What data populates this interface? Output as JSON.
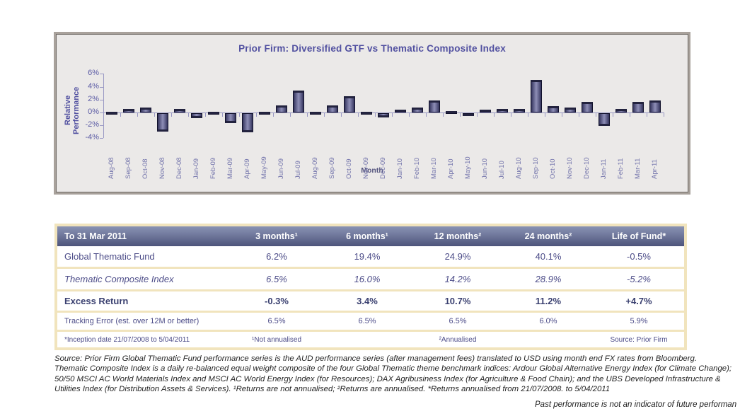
{
  "chart_data": {
    "type": "bar",
    "title": "Prior Firm: Diversified GTF vs Thematic Composite Index",
    "xlabel": "Month",
    "ylabel": "Relative Performance",
    "ylim": [
      -4,
      6
    ],
    "yticks": [
      6,
      4,
      2,
      0,
      -2,
      -4
    ],
    "ytick_labels": [
      "6%",
      "4%",
      "2%",
      "0%",
      "-2%",
      "-4%"
    ],
    "grid": false,
    "legend": "none",
    "bar_color": "#55557f",
    "categories": [
      "Aug-08",
      "Sep-08",
      "Oct-08",
      "Nov-08",
      "Dec-08",
      "Jan-09",
      "Feb-09",
      "Mar-09",
      "Apr-09",
      "May-09",
      "Jun-09",
      "Jul-09",
      "Aug-09",
      "Sep-09",
      "Oct-09",
      "Nov-09",
      "Dec-09",
      "Jan-10",
      "Feb-10",
      "Mar-10",
      "Apr-10",
      "May-10",
      "Jun-10",
      "Jul-10",
      "Aug-10",
      "Sep-10",
      "Oct-10",
      "Nov-10",
      "Dec-10",
      "Jan-11",
      "Feb-11",
      "Mar-11",
      "Apr-11"
    ],
    "values": [
      0.15,
      0.6,
      0.8,
      -2.9,
      0.6,
      -0.8,
      0.1,
      -1.5,
      -3.0,
      0.1,
      1.1,
      3.4,
      0.1,
      1.1,
      2.5,
      0.1,
      -0.7,
      0.4,
      0.8,
      1.9,
      0.2,
      -0.15,
      0.4,
      0.5,
      0.6,
      5.1,
      1.0,
      0.8,
      1.7,
      -2.0,
      0.6,
      1.6,
      1.9
    ]
  },
  "table": {
    "headers": [
      "To 31 Mar 2011",
      "3 months¹",
      "6 months¹",
      "12 months²",
      "24 months²",
      "Life of Fund*"
    ],
    "rows": [
      {
        "label": "Global Thematic Fund",
        "values": [
          "6.2%",
          "19.4%",
          "24.9%",
          "40.1%",
          "-0.5%"
        ],
        "style": "normal"
      },
      {
        "label": "Thematic Composite Index",
        "values": [
          "6.5%",
          "16.0%",
          "14.2%",
          "28.9%",
          "-5.2%"
        ],
        "style": "italic"
      },
      {
        "label": "Excess Return",
        "values": [
          "-0.3%",
          "3.4%",
          "10.7%",
          "11.2%",
          "+4.7%"
        ],
        "style": "bold"
      },
      {
        "label": "Tracking Error (est. over 12M or better)",
        "values": [
          "6.5%",
          "6.5%",
          "6.5%",
          "6.0%",
          "5.9%"
        ],
        "style": "small"
      }
    ],
    "footer": {
      "inception": "*Inception date 21/07/2008 to 5/04/2011",
      "note1": "¹Not annualised",
      "note2": "²Annualised",
      "source": "Source: Prior Firm"
    }
  },
  "footnotes": {
    "paragraph": "Source: Prior Firm Global Thematic Fund performance series is the AUD performance series (after management fees) translated to USD using month end FX rates from Bloomberg. Thematic Composite Index is a daily re-balanced equal weight composite of the four Global Thematic theme benchmark indices: Ardour Global Alternative Energy Index (for Climate Change); 50/50 MSCI AC World Materials Index and MSCI AC World Energy Index (for Resources); DAX Agribusiness Index (for Agriculture & Food Chain); and the UBS Developed Infrastructure & Utilities Index (for Distribution Assets & Services). ¹Returns are not annualised; ²Returns are annualised. *Returns annualised from 21/07/2008. to 5/04/2011",
    "disclaimer": "Past performance is not an indicator of future performan"
  },
  "colors": {
    "panel_bg": "#ebe9e8",
    "panel_border": "#6f6a66",
    "accent_text": "#5150a0",
    "axis": "#9a99c4",
    "bar_dark": "#33335a",
    "bar_light": "#8e8eb6",
    "table_header_top": "#8992b3",
    "table_header_bottom": "#4d547b",
    "table_frame": "#f1e4bd",
    "table_text": "#4c4c88"
  }
}
